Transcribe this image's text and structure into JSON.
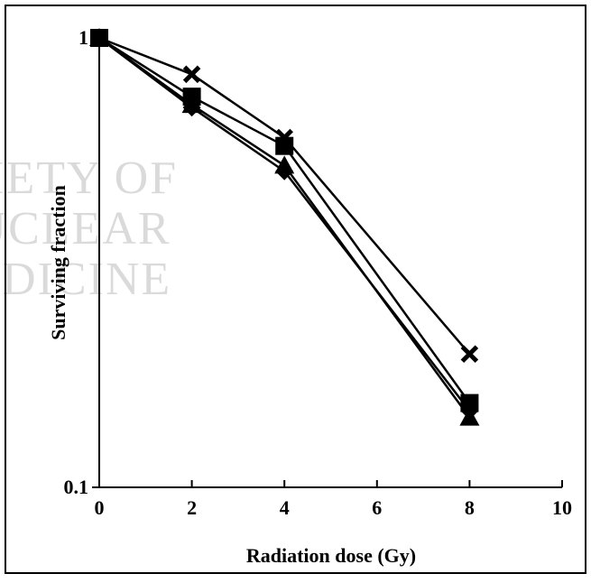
{
  "watermark": {
    "lines": [
      "SOCIETY OF",
      "NUCLEAR",
      "MEDICINE"
    ]
  },
  "chart_data": {
    "type": "line",
    "title": "",
    "xlabel": "Radiation dose (Gy)",
    "ylabel": "Surviving fraction",
    "xlim": [
      0,
      10
    ],
    "ylim": [
      0.1,
      1
    ],
    "yscale": "log",
    "xticks": [
      0,
      2,
      4,
      6,
      8,
      10
    ],
    "yticks": [
      0.1,
      1
    ],
    "ytick_labels": [
      "0.1",
      "1"
    ],
    "grid": false,
    "legend": "none",
    "x": [
      0,
      2,
      4,
      8
    ],
    "series": [
      {
        "marker": "x",
        "values": [
          1.0,
          0.83,
          0.6,
          0.198
        ]
      },
      {
        "marker": "square",
        "values": [
          1.0,
          0.74,
          0.575,
          0.154
        ]
      },
      {
        "marker": "triangle",
        "values": [
          1.0,
          0.71,
          0.52,
          0.143
        ]
      },
      {
        "marker": "diamond",
        "values": [
          1.0,
          0.7,
          0.505,
          0.148
        ]
      }
    ],
    "color": "#000000"
  }
}
